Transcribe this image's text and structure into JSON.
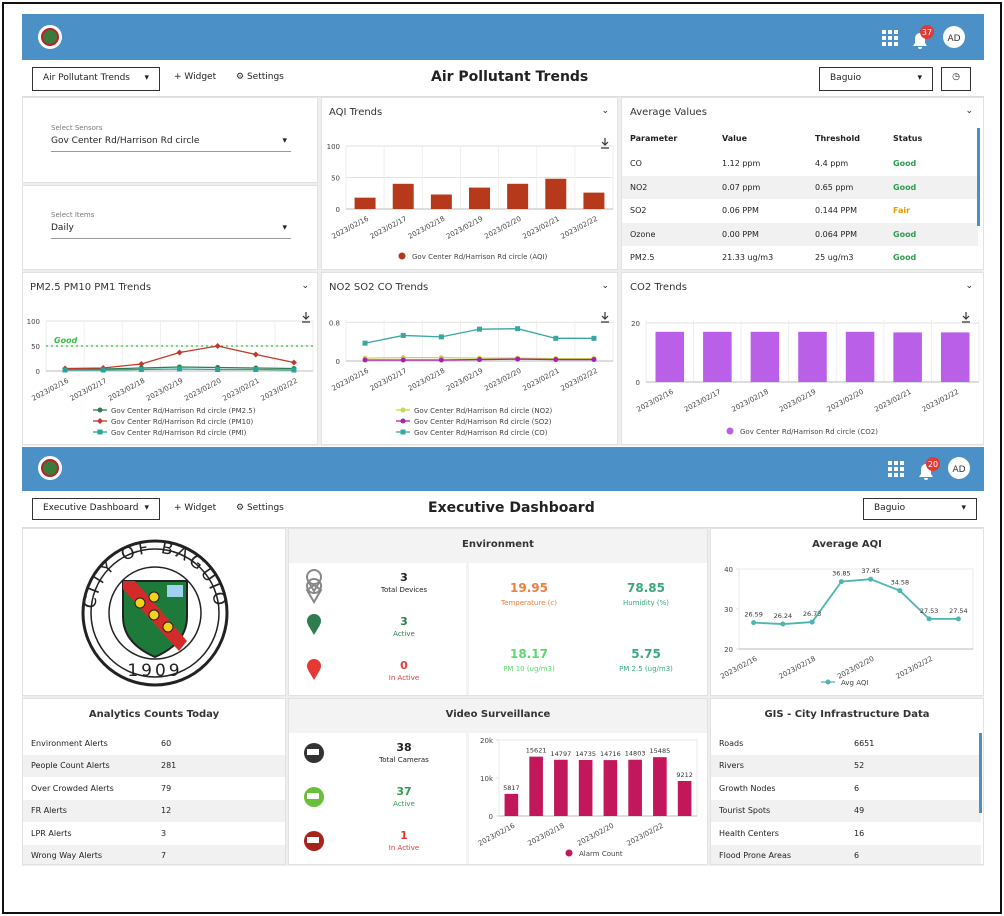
{
  "top": {
    "header": {
      "notifications": 37,
      "avatar": "AD"
    },
    "toolbar": {
      "dashboard": "Air Pollutant Trends",
      "widget": "Widget",
      "settings": "Settings",
      "title": "Air Pollutant Trends",
      "location": "Baguio"
    },
    "sensors": {
      "label": "Select Sensors",
      "value": "Gov Center Rd/Harrison Rd circle"
    },
    "items": {
      "label": "Select Items",
      "value": "Daily"
    },
    "aqi_trends": {
      "type": "bar",
      "title": "AQI Trends",
      "categories": [
        "2023/02/16",
        "2023/02/17",
        "2023/02/18",
        "2023/02/19",
        "2023/02/20",
        "2023/02/21",
        "2023/02/22"
      ],
      "series": [
        {
          "name": "Gov Center Rd/Harrison Rd circle (AQI)",
          "color": "#b5391a",
          "values": [
            18,
            40,
            23,
            34,
            40,
            48,
            26
          ]
        }
      ],
      "ylim": [
        0,
        100
      ],
      "yticks": [
        0,
        50,
        100
      ],
      "grid": true
    },
    "average_values": {
      "title": "Average Values",
      "columns": [
        "Parameter",
        "Value",
        "Threshold",
        "Status"
      ],
      "rows": [
        [
          "CO",
          "1.12 ppm",
          "4.4 ppm",
          "Good"
        ],
        [
          "NO2",
          "0.07 ppm",
          "0.65 ppm",
          "Good"
        ],
        [
          "SO2",
          "0.06 PPM",
          "0.144 PPM",
          "Fair"
        ],
        [
          "Ozone",
          "0.00 PPM",
          "0.064 PPM",
          "Good"
        ],
        [
          "PM2.5",
          "21.33 ug/m3",
          "25 ug/m3",
          "Good"
        ]
      ]
    },
    "pm_trends": {
      "type": "line",
      "title": "PM2.5 PM10 PM1 Trends",
      "categories": [
        "2023/02/16",
        "2023/02/17",
        "2023/02/18",
        "2023/02/19",
        "2023/02/20",
        "2023/02/21",
        "2023/02/22"
      ],
      "series": [
        {
          "name": "Gov Center Rd/Harrison Rd circle (PM2.5)",
          "color": "#2e7d4f",
          "marker": "circle",
          "values": [
            3,
            4,
            6,
            8,
            7,
            6,
            5
          ]
        },
        {
          "name": "Gov Center Rd/Harrison Rd circle (PM10)",
          "color": "#c0392b",
          "marker": "diamond",
          "values": [
            5,
            6,
            14,
            37,
            50,
            33,
            17
          ]
        },
        {
          "name": "Gov Center Rd/Harrison Rd circle (PMI)",
          "color": "#26a69a",
          "marker": "square",
          "values": [
            2,
            2,
            3,
            4,
            3,
            3,
            2
          ]
        }
      ],
      "threshold": {
        "value": 50,
        "label": "Good",
        "color": "#2fbf3a"
      },
      "ylim": [
        0,
        100
      ],
      "yticks": [
        0,
        50,
        100
      ],
      "grid": true
    },
    "gas_trends": {
      "type": "line",
      "title": "NO2 SO2 CO Trends",
      "categories": [
        "2023/02/16",
        "2023/02/17",
        "2023/02/18",
        "2023/02/19",
        "2023/02/20",
        "2023/02/21",
        "2023/02/22"
      ],
      "series": [
        {
          "name": "Gov Center Rd/Harrison Rd circle (NO2)",
          "color": "#c6d94a",
          "marker": "circle",
          "values": [
            0.06,
            0.07,
            0.07,
            0.06,
            0.06,
            0.05,
            0.05
          ]
        },
        {
          "name": "Gov Center Rd/Harrison Rd circle (SO2)",
          "color": "#ad1fae",
          "marker": "circle",
          "values": [
            0.02,
            0.02,
            0.02,
            0.03,
            0.04,
            0.03,
            0.03
          ]
        },
        {
          "name": "Gov Center Rd/Harrison Rd circle (CO)",
          "color": "#3aa6a2",
          "marker": "square",
          "values": [
            0.37,
            0.53,
            0.5,
            0.66,
            0.67,
            0.47,
            0.47
          ]
        }
      ],
      "ylim": [
        0,
        0.85
      ],
      "yticks": [
        0,
        0.8
      ],
      "grid": true
    },
    "co2_trends": {
      "type": "bar",
      "title": "CO2 Trends",
      "categories": [
        "2023/02/16",
        "2023/02/17",
        "2023/02/18",
        "2023/02/19",
        "2023/02/20",
        "2023/02/21",
        "2023/02/22"
      ],
      "series": [
        {
          "name": "Gov Center Rd/Harrison Rd circle (CO2)",
          "color": "#b95fe8",
          "values": [
            17,
            17,
            17,
            17,
            17,
            16.8,
            16.8
          ]
        }
      ],
      "ylim": [
        0,
        21
      ],
      "yticks": [
        0,
        20
      ],
      "grid": true
    }
  },
  "bottom": {
    "header": {
      "notifications": 20,
      "avatar": "AD"
    },
    "toolbar": {
      "dashboard": "Executive Dashboard",
      "widget": "Widget",
      "settings": "Settings",
      "title": "Executive Dashboard",
      "location": "Baguio"
    },
    "seal": {
      "ring": "CITY OF BAGUIO",
      "year": "1909"
    },
    "environment": {
      "title": "Environment",
      "devices": [
        {
          "value": 3,
          "label": "Total Devices"
        },
        {
          "value": 3,
          "label": "Active"
        },
        {
          "value": 0,
          "label": "In Active"
        }
      ],
      "readings": [
        {
          "value": 19.95,
          "label": "Temperature (c)"
        },
        {
          "value": 78.85,
          "label": "Humidity (%)"
        },
        {
          "value": 18.17,
          "label": "PM 10 (ug/m3)"
        },
        {
          "value": 5.75,
          "label": "PM 2.5 (ug/m3)"
        }
      ]
    },
    "average_aqi": {
      "type": "line",
      "title": "Average AQI",
      "categories": [
        "2023/02/16",
        null,
        "2023/02/18",
        null,
        "2023/02/20",
        null,
        "2023/02/22",
        null
      ],
      "series": [
        {
          "name": "Avg AQI",
          "color": "#4db6ac",
          "marker": "circle",
          "values": [
            26.59,
            26.24,
            26.73,
            36.85,
            37.45,
            34.58,
            27.53,
            27.54
          ]
        }
      ],
      "data_labels": true,
      "ylim": [
        20,
        40
      ],
      "yticks": [
        20,
        30,
        40
      ],
      "grid": false
    },
    "analytics": {
      "title": "Analytics Counts Today",
      "rows": [
        [
          "Environment Alerts",
          60
        ],
        [
          "People Count Alerts",
          281
        ],
        [
          "Over Crowded Alerts",
          79
        ],
        [
          "FR Alerts",
          12
        ],
        [
          "LPR Alerts",
          3
        ],
        [
          "Wrong Way Alerts",
          7
        ]
      ]
    },
    "video": {
      "title": "Video Surveillance",
      "cameras": [
        {
          "value": 38,
          "label": "Total Cameras"
        },
        {
          "value": 37,
          "label": "Active"
        },
        {
          "value": 1,
          "label": "In Active"
        }
      ],
      "chart": {
        "type": "bar",
        "categories": [
          "2023/02/16",
          null,
          "2023/02/18",
          null,
          "2023/02/20",
          null,
          "2023/02/22",
          null
        ],
        "series": [
          {
            "name": "Alarm Count",
            "color": "#c2185b",
            "values": [
              5817,
              15621,
              14797,
              14735,
              14716,
              14803,
              15485,
              9212
            ]
          }
        ],
        "data_labels": true,
        "ylim": [
          0,
          20000
        ],
        "yticks": [
          0,
          {
            "value": 10000,
            "label": "10k"
          },
          {
            "value": 20000,
            "label": "20k"
          }
        ],
        "grid": false
      }
    },
    "gis": {
      "title": "GIS - City Infrastructure Data",
      "rows": [
        [
          "Roads",
          6651
        ],
        [
          "Rivers",
          52
        ],
        [
          "Growth Nodes",
          6
        ],
        [
          "Tourist Spots",
          49
        ],
        [
          "Health Centers",
          16
        ],
        [
          "Flood Prone Areas",
          6
        ]
      ]
    }
  }
}
